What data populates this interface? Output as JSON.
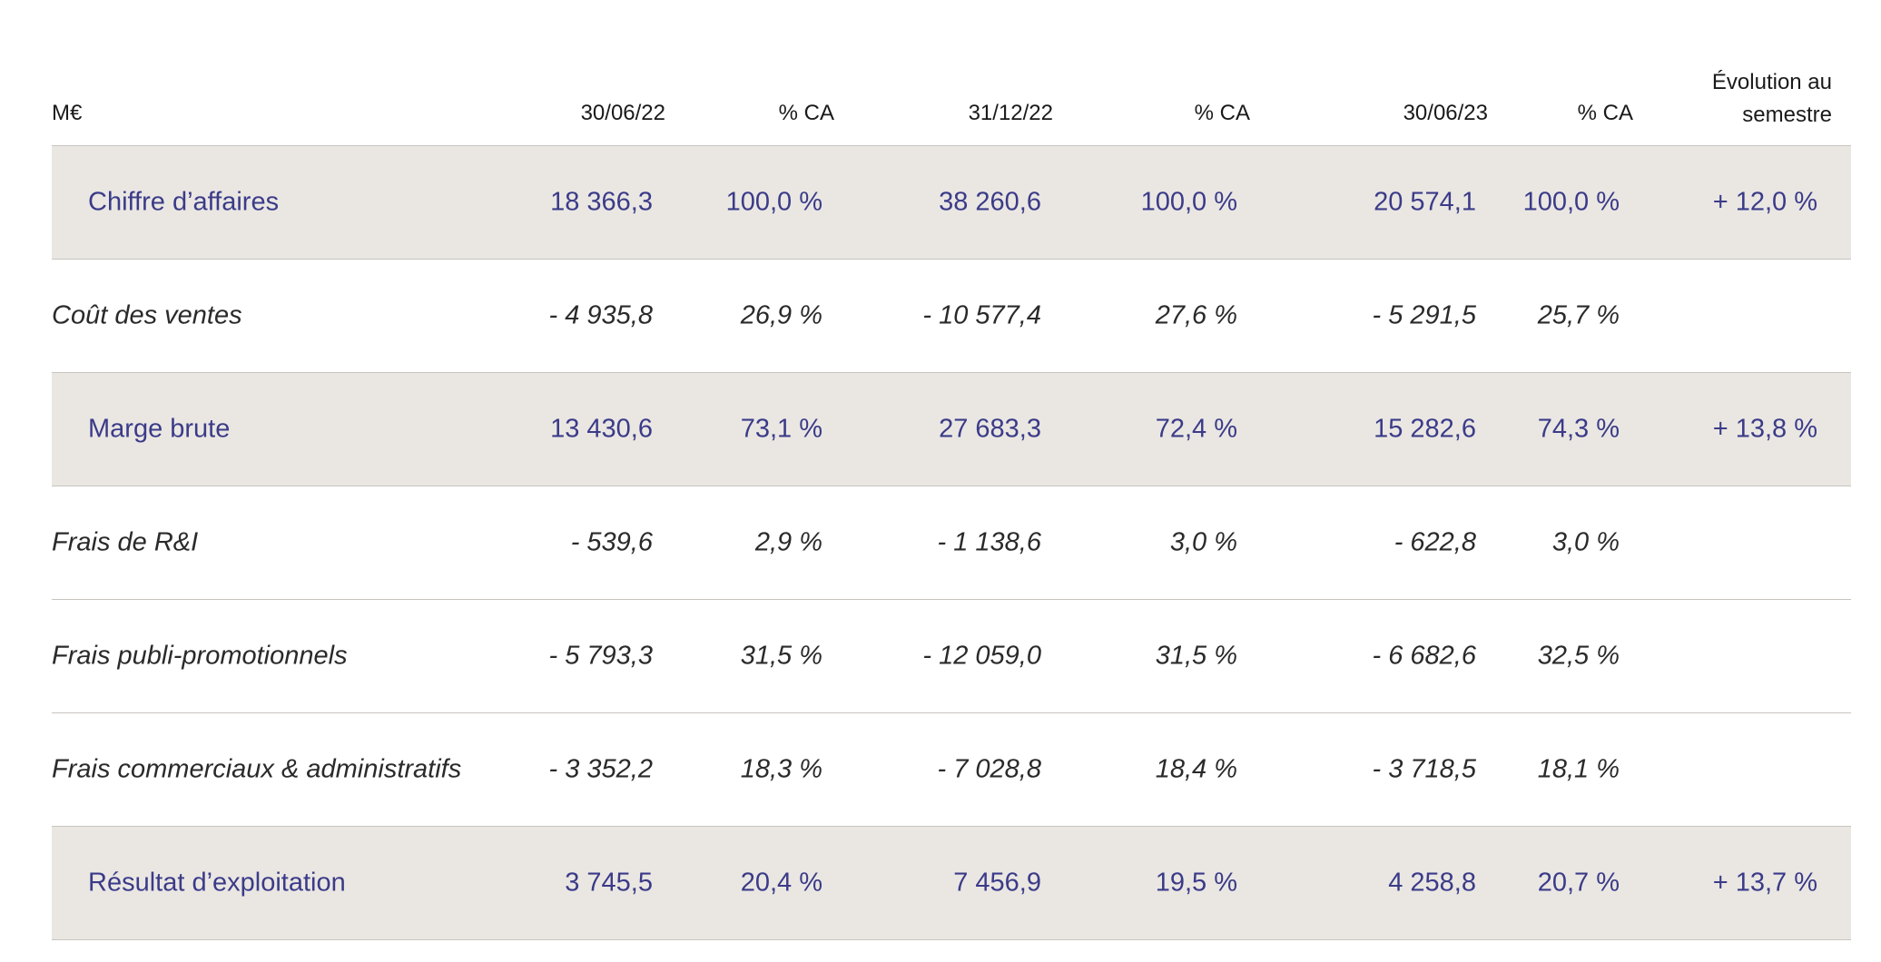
{
  "table": {
    "header": {
      "label": "M€",
      "columns": [
        "30/06/22",
        "% CA",
        "31/12/22",
        "% CA",
        "30/06/23",
        "% CA"
      ],
      "evolution_line1": "Évolution au",
      "evolution_line2": "semestre"
    },
    "rows": [
      {
        "kind": "highlight",
        "label": "Chiffre d’affaires",
        "values": [
          "18 366,3",
          "100,0 %",
          "38 260,6",
          "100,0 %",
          "20 574,1",
          "100,0 %",
          "+ 12,0 %"
        ]
      },
      {
        "kind": "detail",
        "label": "Coût des ventes",
        "values": [
          "- 4 935,8",
          "26,9 %",
          "- 10 577,4",
          "27,6 %",
          "- 5 291,5",
          "25,7 %",
          ""
        ]
      },
      {
        "kind": "highlight",
        "label": "Marge brute",
        "values": [
          "13 430,6",
          "73,1 %",
          "27 683,3",
          "72,4 %",
          "15 282,6",
          "74,3 %",
          "+ 13,8 %"
        ]
      },
      {
        "kind": "detail",
        "label": "Frais de R&I",
        "values": [
          "- 539,6",
          "2,9 %",
          "- 1 138,6",
          "3,0 %",
          "- 622,8",
          "3,0 %",
          ""
        ]
      },
      {
        "kind": "detail",
        "label": "Frais publi-promotionnels",
        "values": [
          "- 5 793,3",
          "31,5 %",
          "- 12 059,0",
          "31,5 %",
          "- 6 682,6",
          "32,5 %",
          ""
        ]
      },
      {
        "kind": "detail",
        "label": "Frais commerciaux & administratifs",
        "values": [
          "- 3 352,2",
          "18,3 %",
          "-  7 028,8",
          "18,4 %",
          "- 3 718,5",
          "18,1 %",
          ""
        ]
      },
      {
        "kind": "highlight",
        "label": "Résultat d’exploitation",
        "values": [
          "3 745,5",
          "20,4 %",
          "7 456,9",
          "19,5 %",
          "4 258,8",
          "20,7 %",
          "+ 13,7 %"
        ]
      }
    ]
  }
}
